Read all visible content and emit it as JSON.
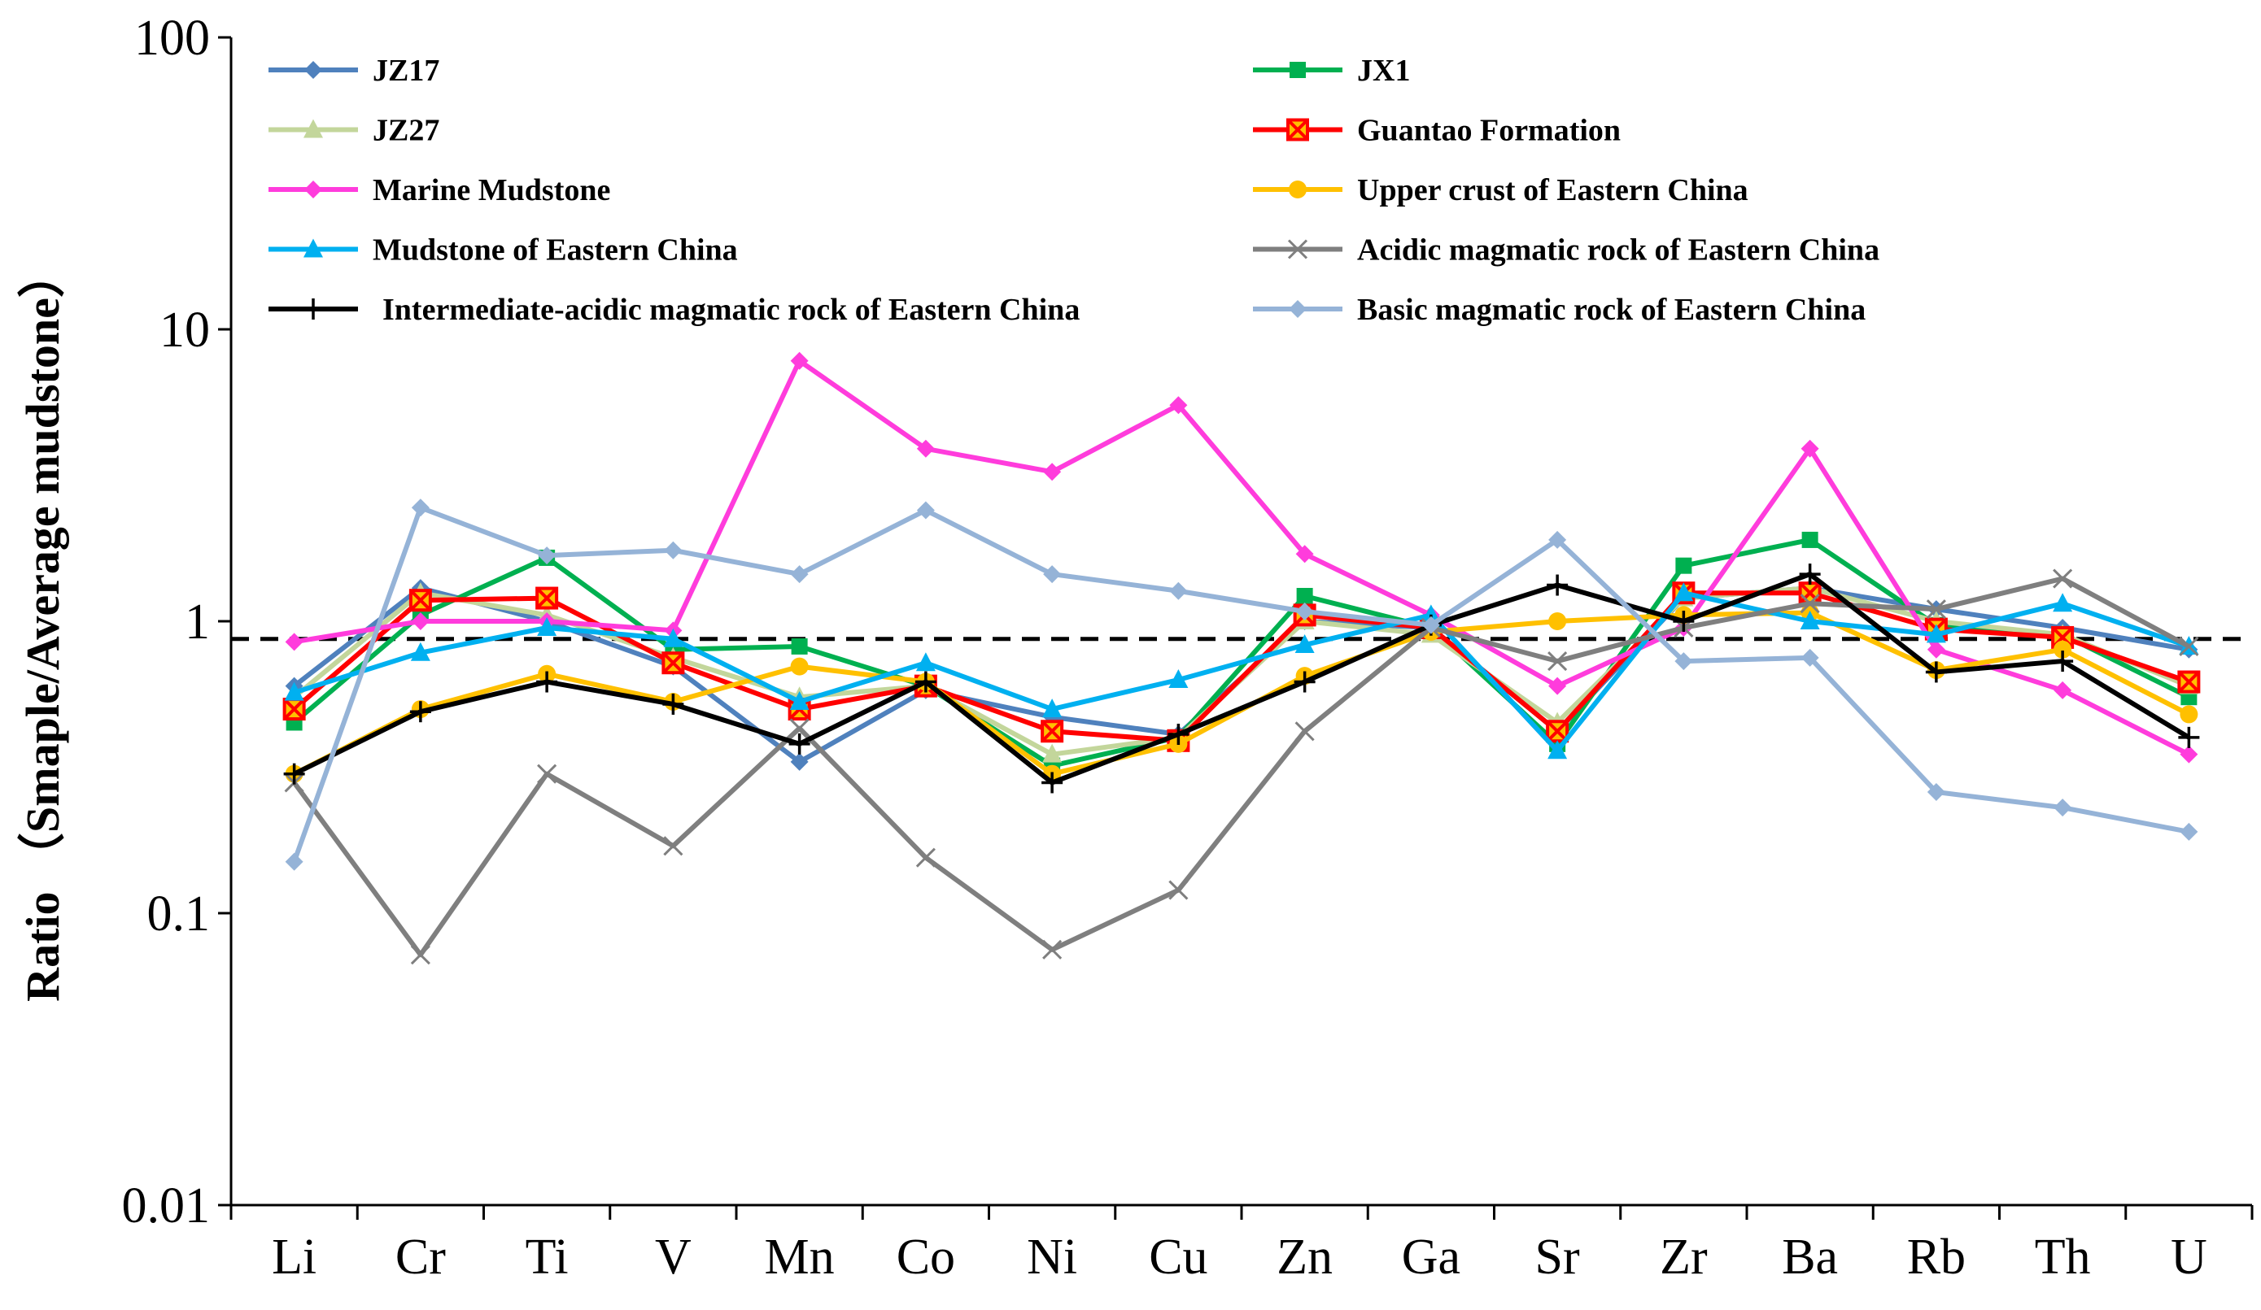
{
  "chart_data": {
    "type": "line",
    "y_scale": "log",
    "ylim": [
      0.01,
      100
    ],
    "yticks": [
      {
        "value": 100,
        "label": "100"
      },
      {
        "value": 10,
        "label": "10"
      },
      {
        "value": 1,
        "label": "1"
      },
      {
        "value": 0.1,
        "label": "0.1"
      },
      {
        "value": 0.01,
        "label": "0.01"
      }
    ],
    "ylabel": "Ratio （Smaple/Average mudstone）",
    "xlabel": "",
    "categories": [
      "Li",
      "Cr",
      "Ti",
      "V",
      "Mn",
      "Co",
      "Ni",
      "Cu",
      "Zn",
      "Ga",
      "Sr",
      "Zr",
      "Ba",
      "Rb",
      "Th",
      "U"
    ],
    "reference_line": {
      "value": 0.87,
      "style": "dashed",
      "color": "#000000"
    },
    "legend": {
      "placement": "top",
      "columns": 2
    },
    "series": [
      {
        "name": "JZ17",
        "color": "#4F81BD",
        "marker": "diamond",
        "values": [
          0.6,
          1.3,
          1.0,
          0.7,
          0.33,
          0.58,
          0.47,
          0.41,
          1.0,
          0.95,
          0.42,
          1.2,
          1.3,
          1.1,
          0.95,
          0.8
        ]
      },
      {
        "name": "JX1",
        "color": "#00B050",
        "marker": "square",
        "values": [
          0.45,
          1.05,
          1.65,
          0.8,
          0.82,
          0.6,
          0.32,
          0.4,
          1.22,
          0.95,
          0.38,
          1.55,
          1.9,
          0.97,
          0.9,
          0.55
        ]
      },
      {
        "name": "JZ27",
        "color": "#C3D69B",
        "marker": "triangle",
        "values": [
          0.55,
          1.25,
          1.05,
          0.75,
          0.55,
          0.6,
          0.35,
          0.4,
          1.0,
          0.9,
          0.45,
          1.2,
          1.3,
          1.0,
          0.9,
          0.6
        ]
      },
      {
        "name": "Guantao Formation",
        "color": "#FF0000",
        "marker": "xsquare",
        "values": [
          0.5,
          1.18,
          1.2,
          0.72,
          0.5,
          0.6,
          0.42,
          0.39,
          1.05,
          0.95,
          0.42,
          1.25,
          1.25,
          0.94,
          0.88,
          0.62
        ]
      },
      {
        "name": "Marine Mudstone",
        "color": "#FF3CDC",
        "marker": "diamond",
        "values": [
          0.85,
          1.0,
          1.0,
          0.93,
          7.8,
          3.9,
          3.25,
          5.5,
          1.7,
          1.05,
          0.6,
          0.95,
          3.9,
          0.8,
          0.58,
          0.35
        ]
      },
      {
        "name": "Upper crust of Eastern China",
        "color": "#FFC000",
        "marker": "circle",
        "values": [
          0.3,
          0.5,
          0.66,
          0.53,
          0.7,
          0.62,
          0.3,
          0.38,
          0.65,
          0.92,
          1.0,
          1.05,
          1.07,
          0.68,
          0.8,
          0.48
        ]
      },
      {
        "name": "Mudstone of Eastern China",
        "color": "#00B0F0",
        "marker": "triangle",
        "values": [
          0.57,
          0.78,
          0.95,
          0.87,
          0.53,
          0.72,
          0.5,
          0.63,
          0.83,
          1.05,
          0.36,
          1.25,
          1.0,
          0.9,
          1.15,
          0.82
        ]
      },
      {
        "name": "Acidic magmatic rock of Eastern China",
        "color": "#7F7F7F",
        "marker": "x",
        "values": [
          0.28,
          0.072,
          0.3,
          0.17,
          0.43,
          0.155,
          0.075,
          0.12,
          0.42,
          0.95,
          0.73,
          0.95,
          1.15,
          1.1,
          1.4,
          0.82
        ]
      },
      {
        "name": "Intermediate-acidic magmatic rock of Eastern China",
        "color": "#000000",
        "marker": "plus",
        "values": [
          0.3,
          0.49,
          0.62,
          0.52,
          0.38,
          0.62,
          0.28,
          0.41,
          0.62,
          0.97,
          1.33,
          1.0,
          1.45,
          0.67,
          0.73,
          0.4
        ]
      },
      {
        "name": "Basic magmatic rock of Eastern China",
        "color": "#95B3D7",
        "marker": "diamond",
        "values": [
          0.15,
          2.45,
          1.68,
          1.75,
          1.45,
          2.4,
          1.45,
          1.27,
          1.08,
          0.97,
          1.9,
          0.73,
          0.75,
          0.26,
          0.23,
          0.19
        ]
      }
    ]
  }
}
